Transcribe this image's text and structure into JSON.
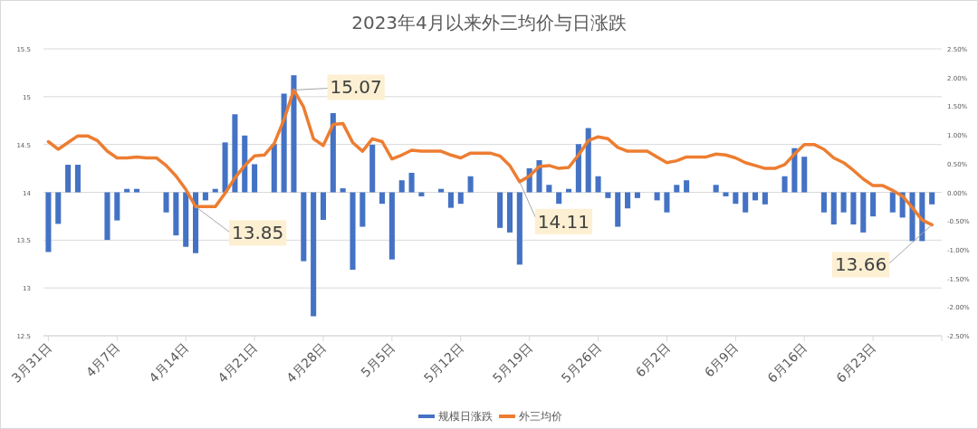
{
  "chart_data": {
    "type": "bar",
    "title": "2023年4月以来外三均价与日涨跌",
    "x": [
      "2023-03-31",
      "2023-04-01",
      "2023-04-02",
      "2023-04-03",
      "2023-04-04",
      "2023-04-05",
      "2023-04-06",
      "2023-04-07",
      "2023-04-08",
      "2023-04-09",
      "2023-04-10",
      "2023-04-11",
      "2023-04-12",
      "2023-04-13",
      "2023-04-14",
      "2023-04-15",
      "2023-04-16",
      "2023-04-17",
      "2023-04-18",
      "2023-04-19",
      "2023-04-20",
      "2023-04-21",
      "2023-04-22",
      "2023-04-23",
      "2023-04-24",
      "2023-04-25",
      "2023-04-26",
      "2023-04-27",
      "2023-04-28",
      "2023-04-29",
      "2023-04-30",
      "2023-05-01",
      "2023-05-02",
      "2023-05-03",
      "2023-05-04",
      "2023-05-05",
      "2023-05-06",
      "2023-05-07",
      "2023-05-08",
      "2023-05-09",
      "2023-05-10",
      "2023-05-11",
      "2023-05-12",
      "2023-05-13",
      "2023-05-14",
      "2023-05-15",
      "2023-05-16",
      "2023-05-17",
      "2023-05-18",
      "2023-05-19",
      "2023-05-20",
      "2023-05-21",
      "2023-05-22",
      "2023-05-23",
      "2023-05-24",
      "2023-05-25",
      "2023-05-26",
      "2023-05-27",
      "2023-05-28",
      "2023-05-29",
      "2023-05-30",
      "2023-05-31",
      "2023-06-01",
      "2023-06-02",
      "2023-06-03",
      "2023-06-04",
      "2023-06-05",
      "2023-06-06",
      "2023-06-07",
      "2023-06-08",
      "2023-06-09",
      "2023-06-10",
      "2023-06-11",
      "2023-06-12",
      "2023-06-13",
      "2023-06-14",
      "2023-06-15",
      "2023-06-16",
      "2023-06-17",
      "2023-06-18",
      "2023-06-19",
      "2023-06-20",
      "2023-06-21",
      "2023-06-22",
      "2023-06-23",
      "2023-06-24",
      "2023-06-25",
      "2023-06-26",
      "2023-06-27",
      "2023-06-28",
      "2023-06-29"
    ],
    "xlim": [
      "2023-03-30T12:00",
      "2023-06-30"
    ],
    "xticks": [
      {
        "value": "2023-03-31",
        "label": "3月31日"
      },
      {
        "value": "2023-04-07",
        "label": "4月7日"
      },
      {
        "value": "2023-04-14",
        "label": "4月14日"
      },
      {
        "value": "2023-04-21",
        "label": "4月21日"
      },
      {
        "value": "2023-04-28",
        "label": "4月28日"
      },
      {
        "value": "2023-05-05",
        "label": "5月5日"
      },
      {
        "value": "2023-05-12",
        "label": "5月12日"
      },
      {
        "value": "2023-05-19",
        "label": "5月19日"
      },
      {
        "value": "2023-05-26",
        "label": "5月26日"
      },
      {
        "value": "2023-06-02",
        "label": "6月2日"
      },
      {
        "value": "2023-06-09",
        "label": "6月9日"
      },
      {
        "value": "2023-06-16",
        "label": "6月16日"
      },
      {
        "value": "2023-06-23",
        "label": "6月23日"
      }
    ],
    "ylim": [
      12.5,
      15.5
    ],
    "yticks": [
      12.5,
      13,
      13.5,
      14,
      14.5,
      15,
      15.5
    ],
    "y2lim": [
      -2.5,
      2.5
    ],
    "y2ticks": [
      {
        "value": -2.5,
        "label": "-2.50%"
      },
      {
        "value": -2,
        "label": "-2.00%"
      },
      {
        "value": -1.5,
        "label": "-1.50%"
      },
      {
        "value": -1,
        "label": "-1.00%"
      },
      {
        "value": -0.5,
        "label": "-0.50%"
      },
      {
        "value": 0,
        "label": "0.00%"
      },
      {
        "value": 0.5,
        "label": "0.50%"
      },
      {
        "value": 1,
        "label": "1.00%"
      },
      {
        "value": 1.5,
        "label": "1.50%"
      },
      {
        "value": 2,
        "label": "2.00%"
      },
      {
        "value": 2.5,
        "label": "2.50%"
      }
    ],
    "grid": "y",
    "legend": "bottom",
    "series": [
      {
        "name": "规模日涨跌",
        "axis": "y2",
        "color": "#4472c4",
        "values": [
          -1.04,
          -0.55,
          0.48,
          0.48,
          0,
          0,
          -0.83,
          -0.49,
          0.06,
          0.06,
          0,
          0,
          -0.35,
          -0.75,
          -0.95,
          -1.06,
          -0.14,
          0.06,
          0.87,
          1.36,
          0.99,
          0.49,
          0,
          0.84,
          1.72,
          2.04,
          -1.2,
          -2.16,
          -0.48,
          1.38,
          0.07,
          -1.35,
          -0.6,
          0.83,
          -0.2,
          -1.17,
          0.21,
          0.34,
          -0.07,
          0,
          0.06,
          -0.27,
          -0.2,
          0.28,
          0,
          0,
          -0.62,
          -0.7,
          -1.26,
          0.42,
          0.56,
          0.13,
          -0.2,
          0.06,
          0.84,
          1.12,
          0.28,
          -0.1,
          -0.6,
          -0.28,
          -0.1,
          0,
          -0.14,
          -0.35,
          0.13,
          0.21,
          0,
          0,
          0.13,
          -0.07,
          -0.2,
          -0.35,
          -0.14,
          -0.21,
          0,
          0.28,
          0.77,
          0.62,
          0,
          -0.35,
          -0.56,
          -0.35,
          -0.56,
          -0.7,
          -0.42,
          0,
          -0.35,
          -0.44,
          -0.85,
          -0.85,
          -0.21
        ]
      },
      {
        "name": "外三均价",
        "type": "line",
        "color": "#ed7d31",
        "values": [
          14.53,
          14.45,
          14.52,
          14.59,
          14.59,
          14.54,
          14.43,
          14.36,
          14.36,
          14.37,
          14.36,
          14.36,
          14.28,
          14.17,
          14.03,
          13.85,
          13.85,
          13.85,
          13.99,
          14.15,
          14.28,
          14.38,
          14.39,
          14.51,
          14.76,
          15.07,
          14.89,
          14.56,
          14.49,
          14.71,
          14.72,
          14.52,
          14.43,
          14.56,
          14.53,
          14.35,
          14.39,
          14.44,
          14.43,
          14.43,
          14.43,
          14.39,
          14.36,
          14.41,
          14.41,
          14.41,
          14.38,
          14.28,
          14.11,
          14.17,
          14.27,
          14.28,
          14.25,
          14.26,
          14.39,
          14.54,
          14.58,
          14.56,
          14.47,
          14.43,
          14.43,
          14.43,
          14.37,
          14.31,
          14.33,
          14.37,
          14.37,
          14.37,
          14.4,
          14.39,
          14.36,
          14.31,
          14.28,
          14.25,
          14.25,
          14.29,
          14.4,
          14.5,
          14.5,
          14.45,
          14.36,
          14.31,
          14.23,
          14.14,
          14.07,
          14.07,
          14.02,
          13.96,
          13.84,
          13.71,
          13.66
        ]
      }
    ],
    "annotations": [
      {
        "text": "13.85",
        "x": "2023-04-15",
        "y": 13.85
      },
      {
        "text": "15.07",
        "x": "2023-04-25",
        "y": 15.07
      },
      {
        "text": "14.11",
        "x": "2023-05-18",
        "y": 14.11
      },
      {
        "text": "13.66",
        "x": "2023-06-29",
        "y": 13.66
      }
    ]
  }
}
